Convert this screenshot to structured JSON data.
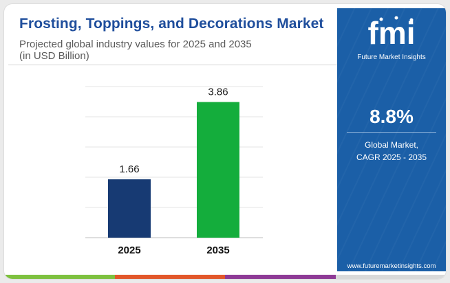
{
  "header": {
    "title": "Frosting, Toppings, and Decorations Market",
    "subtitle_line1": "Projected global industry values for 2025 and 2035",
    "subtitle_line2": "(in USD Billion)"
  },
  "sidebar": {
    "brand_name": "Future Market Insights",
    "logo_text": "fmi",
    "cagr_value": "8.8%",
    "cagr_label_line1": "Global Market,",
    "cagr_label_line2": "CAGR 2025 - 2035",
    "website": "www.futuremarketinsights.com"
  },
  "colors": {
    "title": "#1f4e9c",
    "sidebar_bg": "#1b5fa7",
    "bar_2025": "#173a73",
    "bar_2035": "#14ad3c",
    "strip": [
      "#7ec13f",
      "#e2572a",
      "#8e3a96",
      "#d9d9d9"
    ]
  },
  "chart_data": {
    "type": "bar",
    "categories": [
      "2025",
      "2035"
    ],
    "values": [
      1.66,
      3.86
    ],
    "value_labels": [
      "1.66",
      "3.86"
    ],
    "title": "Frosting, Toppings, and Decorations Market",
    "subtitle": "Projected global industry values for 2025 and 2035 (in USD Billion)",
    "xlabel": "",
    "ylabel": "",
    "ylim": [
      0,
      4.3
    ],
    "grid": true,
    "legend": "none"
  }
}
